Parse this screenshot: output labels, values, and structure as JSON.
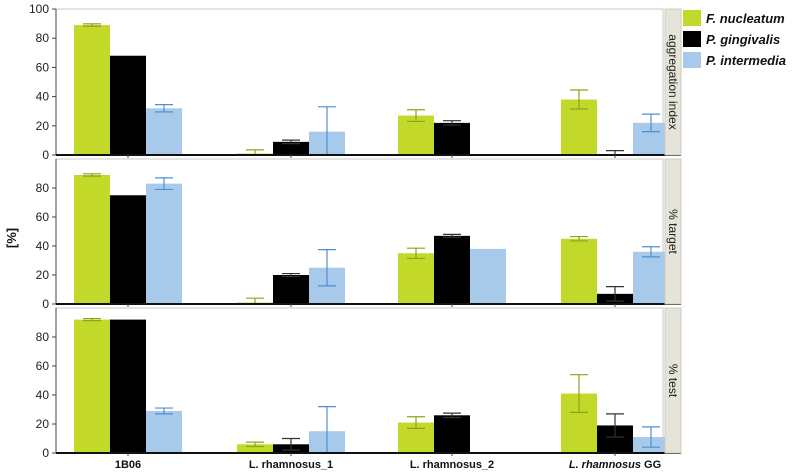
{
  "chart_data": {
    "type": "bar",
    "ylabel": "[%]",
    "ylim": [
      0,
      100
    ],
    "categories": [
      "1B06",
      "L. rhamnosus_1",
      "L. rhamnosus_2",
      "L. rhamnosus GG"
    ],
    "category_labels": [
      {
        "italic": "",
        "plain": "1B06"
      },
      {
        "italic": "",
        "plain": "L. rhamnosus_1"
      },
      {
        "italic": "",
        "plain": "L. rhamnosus_2"
      },
      {
        "italic": "L. rhamnosus",
        "plain": " GG"
      }
    ],
    "legend": [
      "F. nucleatum",
      "P. gingivalis",
      "P. intermedia"
    ],
    "colors": [
      "#c3d92a",
      "#000000",
      "#a7c9ea"
    ],
    "error_colors": [
      "#8ea31c",
      "#333333",
      "#4f8fd0"
    ],
    "panels": [
      {
        "strip_label": "aggregation index",
        "yticks": [
          0,
          20,
          40,
          60,
          80,
          100
        ],
        "series": [
          {
            "name": "F. nucleatum",
            "values": [
              89,
              1,
              27,
              38
            ],
            "errors": [
              0.8,
              2.5,
              4,
              6.5
            ]
          },
          {
            "name": "P. gingivalis",
            "values": [
              68,
              9,
              22,
              0
            ],
            "errors": [
              0,
              1.2,
              1.5,
              3
            ]
          },
          {
            "name": "P. intermedia",
            "values": [
              32,
              16,
              0,
              22
            ],
            "errors": [
              2.5,
              17,
              0,
              6
            ]
          }
        ]
      },
      {
        "strip_label": "% target",
        "yticks": [
          0,
          20,
          40,
          60,
          80
        ],
        "series": [
          {
            "name": "F. nucleatum",
            "values": [
              89,
              1,
              35,
              45
            ],
            "errors": [
              0.8,
              3,
              3.5,
              1.5
            ]
          },
          {
            "name": "P. gingivalis",
            "values": [
              75,
              20,
              47,
              7
            ],
            "errors": [
              0,
              1,
              1,
              5
            ]
          },
          {
            "name": "P. intermedia",
            "values": [
              83,
              25,
              38,
              36
            ],
            "errors": [
              4,
              12.5,
              0,
              3.5
            ]
          }
        ]
      },
      {
        "strip_label": "% test",
        "yticks": [
          0,
          20,
          40,
          60,
          80
        ],
        "series": [
          {
            "name": "F. nucleatum",
            "values": [
              92,
              6,
              21,
              41
            ],
            "errors": [
              0.7,
              1.5,
              4,
              13
            ]
          },
          {
            "name": "P. gingivalis",
            "values": [
              92,
              6,
              26,
              19
            ],
            "errors": [
              0,
              4,
              1.5,
              8
            ]
          },
          {
            "name": "P. intermedia",
            "values": [
              29,
              15,
              0,
              11
            ],
            "errors": [
              2,
              17,
              0,
              7
            ]
          }
        ]
      }
    ]
  }
}
